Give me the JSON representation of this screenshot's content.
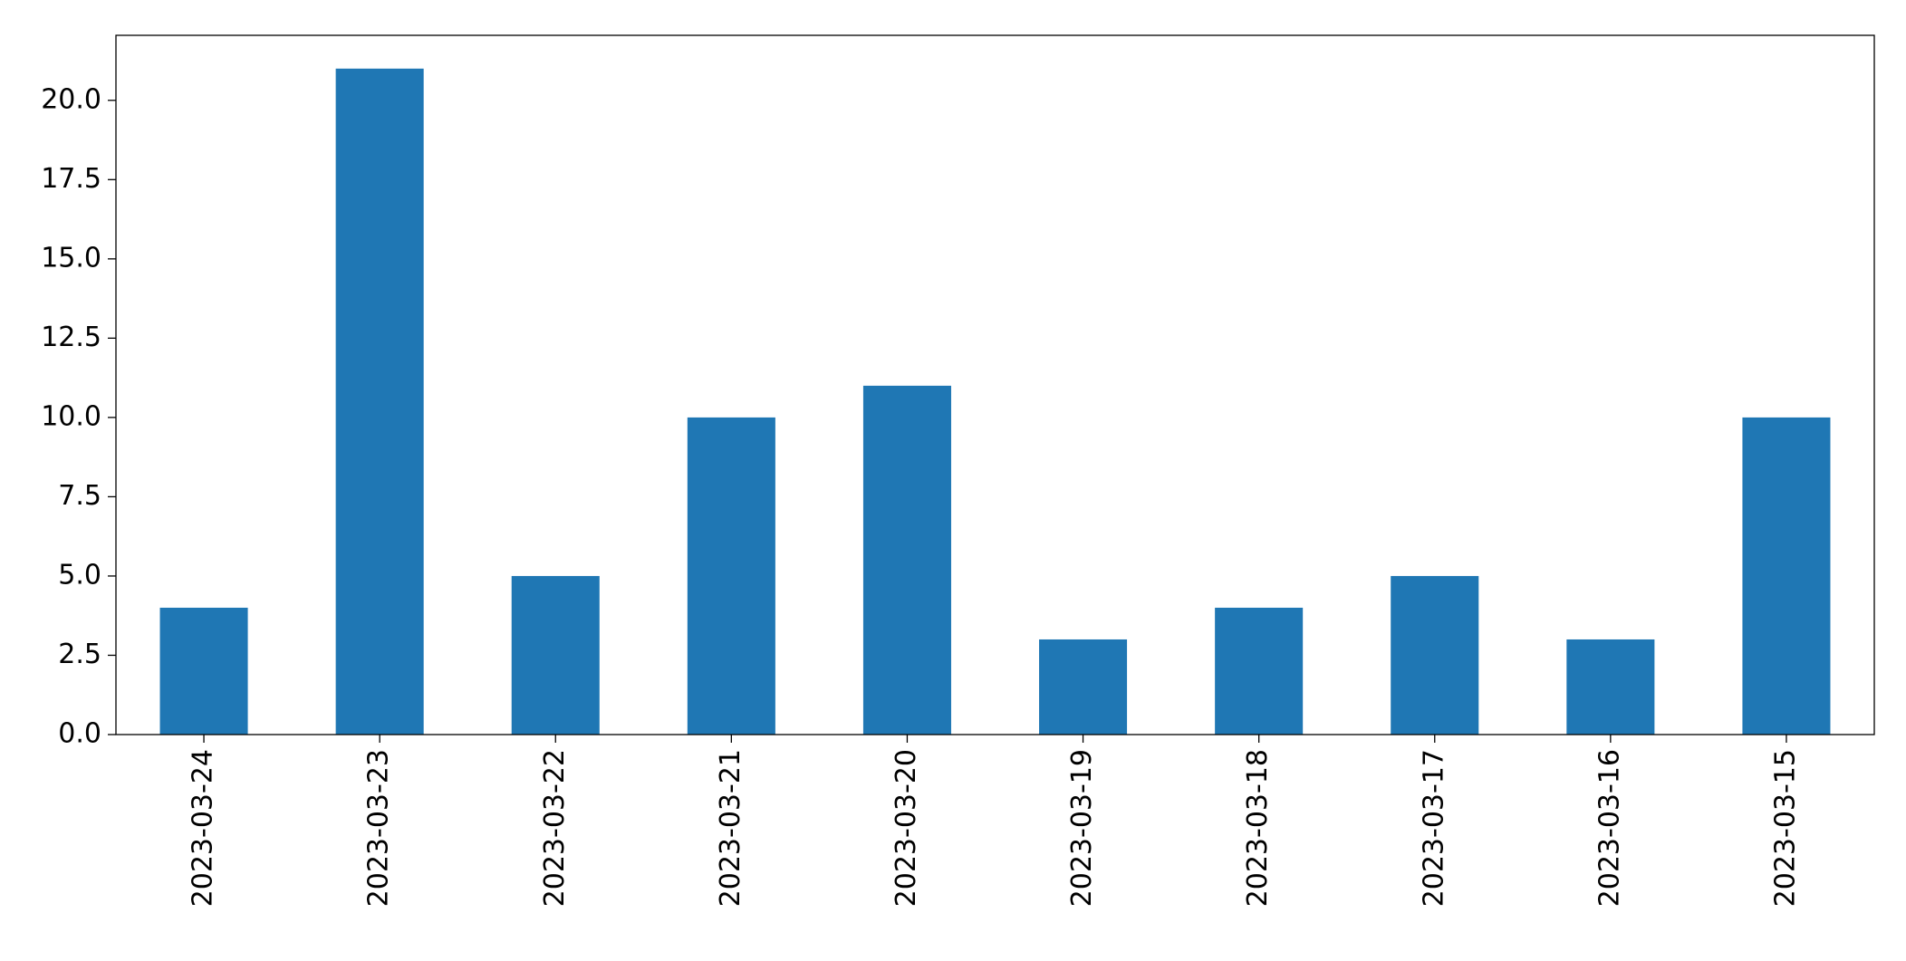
{
  "chart_data": {
    "type": "bar",
    "categories": [
      "2023-03-24",
      "2023-03-23",
      "2023-03-22",
      "2023-03-21",
      "2023-03-20",
      "2023-03-19",
      "2023-03-18",
      "2023-03-17",
      "2023-03-16",
      "2023-03-15"
    ],
    "values": [
      4,
      21,
      5,
      10,
      11,
      3,
      4,
      5,
      3,
      10
    ],
    "color": "#1f77b4",
    "ylim": [
      0,
      22.05
    ],
    "yticks": [
      {
        "value": 0,
        "label": "0.0"
      },
      {
        "value": 2.5,
        "label": "2.5"
      },
      {
        "value": 5,
        "label": "5.0"
      },
      {
        "value": 7.5,
        "label": "7.5"
      },
      {
        "value": 10,
        "label": "10.0"
      },
      {
        "value": 12.5,
        "label": "12.5"
      },
      {
        "value": 15,
        "label": "15.0"
      },
      {
        "value": 17.5,
        "label": "17.5"
      },
      {
        "value": 20,
        "label": "20.0"
      }
    ],
    "grid": false
  }
}
